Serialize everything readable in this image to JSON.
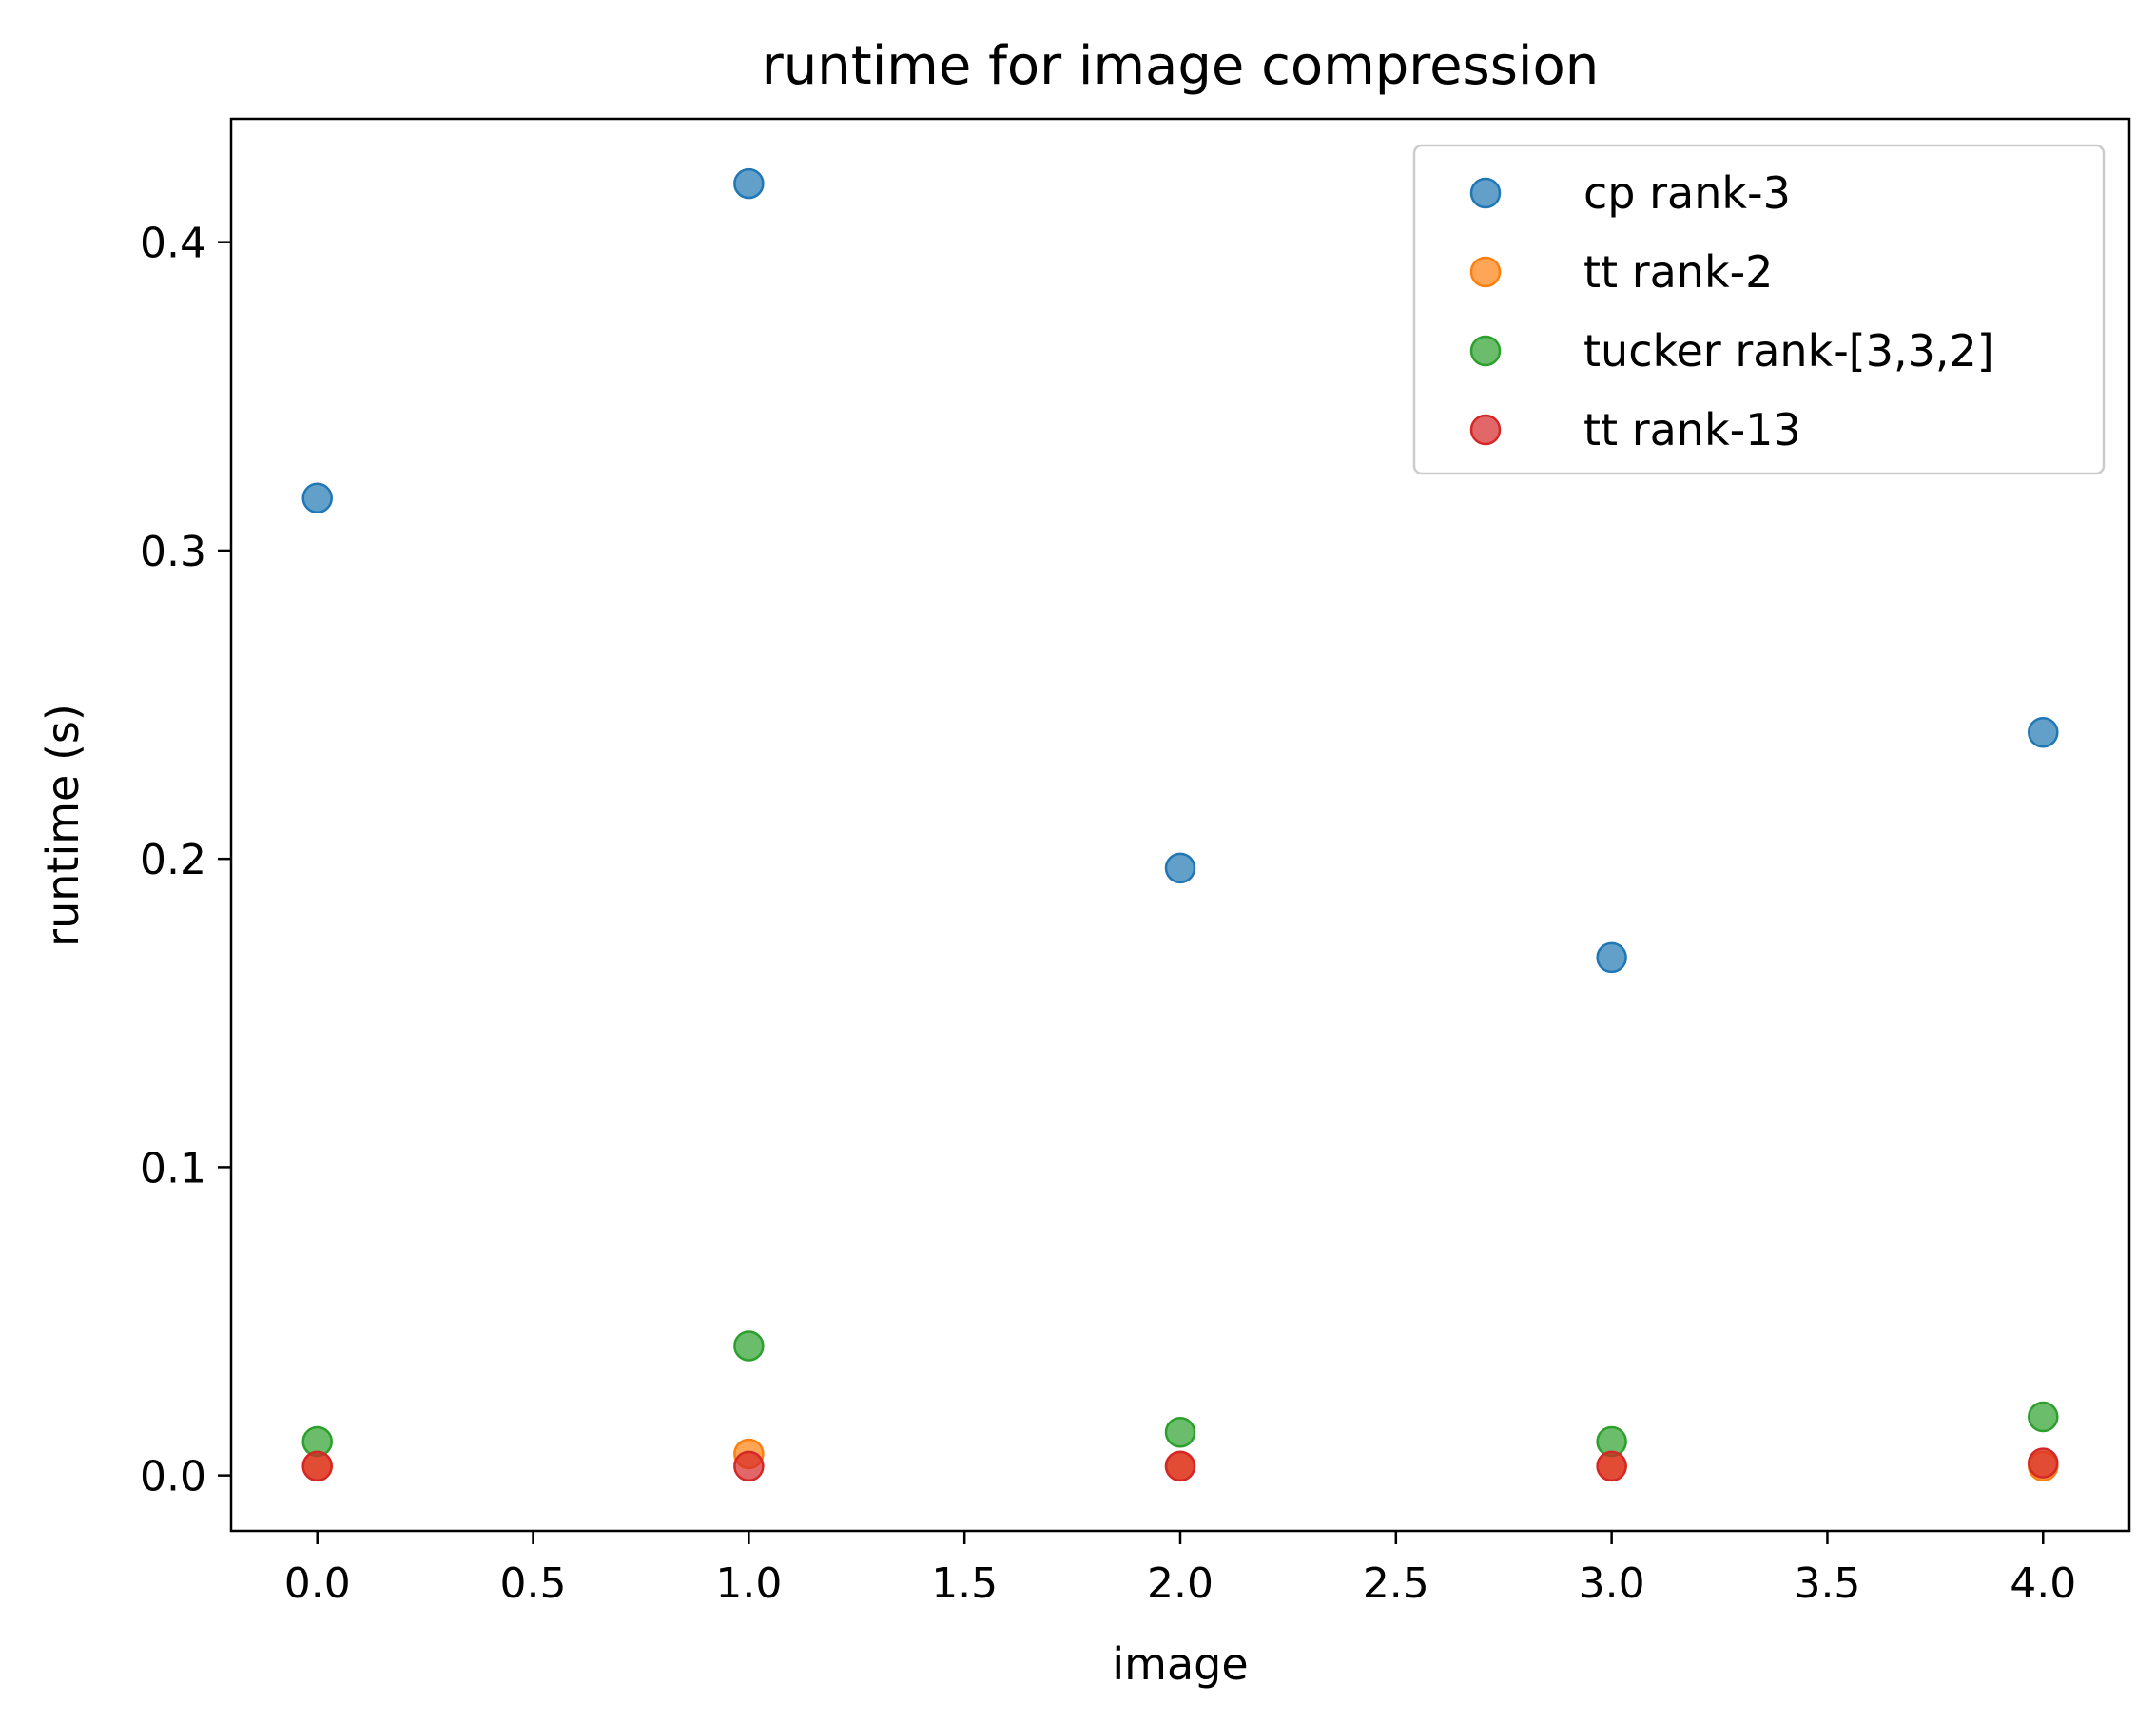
{
  "chart_data": {
    "type": "scatter",
    "title": "runtime for image compression",
    "xlabel": "image",
    "ylabel": "runtime (s)",
    "xlim": [
      -0.2,
      4.2
    ],
    "ylim": [
      -0.018,
      0.44
    ],
    "xticks": [
      "0.0",
      "0.5",
      "1.0",
      "1.5",
      "2.0",
      "2.5",
      "3.0",
      "3.5",
      "4.0"
    ],
    "yticks": [
      "0.0",
      "0.1",
      "0.2",
      "0.3",
      "0.4"
    ],
    "grid": false,
    "legend_position": "top-right",
    "series": [
      {
        "name": "cp rank-3",
        "color": "#1f77b4",
        "x": [
          0,
          1,
          2,
          3,
          4
        ],
        "y": [
          0.317,
          0.419,
          0.197,
          0.168,
          0.241
        ]
      },
      {
        "name": "tt rank-2",
        "color": "#ff7f0e",
        "x": [
          0,
          1,
          2,
          3,
          4
        ],
        "y": [
          0.003,
          0.007,
          0.003,
          0.003,
          0.003
        ]
      },
      {
        "name": "tucker rank-[3,3,2]",
        "color": "#2ca02c",
        "x": [
          0,
          1,
          2,
          3,
          4
        ],
        "y": [
          0.011,
          0.042,
          0.014,
          0.011,
          0.019
        ]
      },
      {
        "name": "tt rank-13",
        "color": "#d62728",
        "x": [
          0,
          1,
          2,
          3,
          4
        ],
        "y": [
          0.003,
          0.003,
          0.003,
          0.003,
          0.004
        ]
      }
    ]
  }
}
